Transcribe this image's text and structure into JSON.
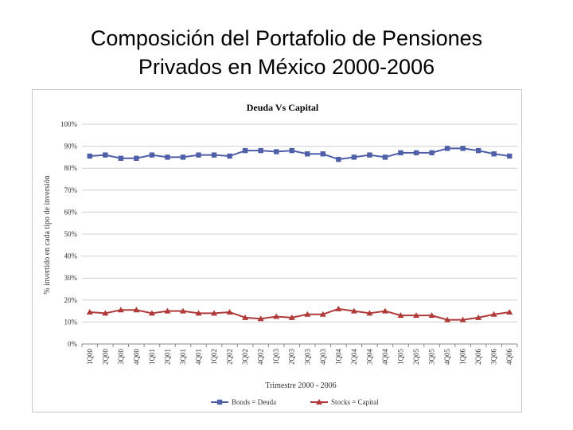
{
  "slide": {
    "title_line1": "Composición del Portafolio de Pensiones",
    "title_line2": "Privados en México 2000-2006"
  },
  "chart_data": {
    "type": "line",
    "title": "Deuda Vs Capital",
    "xlabel": "Trimestre 2000 - 2006",
    "ylabel": "% invertido en cada tipo de inversión",
    "ylim": [
      0,
      100
    ],
    "y_ticks": [
      "0%",
      "10%",
      "20%",
      "30%",
      "40%",
      "50%",
      "60%",
      "70%",
      "80%",
      "90%",
      "100%"
    ],
    "grid": true,
    "legend_position": "bottom",
    "categories": [
      "1Q00",
      "2Q00",
      "3Q00",
      "4Q00",
      "1Q01",
      "2Q01",
      "3Q01",
      "4Q01",
      "1Q02",
      "2Q02",
      "3Q02",
      "4Q02",
      "1Q03",
      "2Q03",
      "3Q03",
      "4Q03",
      "1Q04",
      "2Q04",
      "3Q04",
      "4Q04",
      "1Q05",
      "2Q05",
      "3Q05",
      "4Q05",
      "1Q06",
      "2Q06",
      "3Q06",
      "4Q06"
    ],
    "series": [
      {
        "name": "Bonds = Deuda",
        "color": "#4f5fa8",
        "marker": "square",
        "values": [
          85.5,
          86,
          84.5,
          84.5,
          86,
          85,
          85,
          86,
          86,
          85.5,
          88,
          88,
          87.5,
          88,
          86.5,
          86.5,
          84,
          85,
          86,
          85,
          87,
          87,
          87,
          89,
          89,
          88,
          86.5,
          85.5
        ]
      },
      {
        "name": "Stocks = Capital",
        "color": "#b03a3a",
        "marker": "triangle",
        "values": [
          14.5,
          14,
          15.5,
          15.5,
          14,
          15,
          15,
          14,
          14,
          14.5,
          12,
          11.5,
          12.5,
          12,
          13.5,
          13.5,
          16,
          15,
          14,
          15,
          13,
          13,
          13,
          11,
          11,
          12,
          13.5,
          14.5
        ]
      }
    ]
  }
}
